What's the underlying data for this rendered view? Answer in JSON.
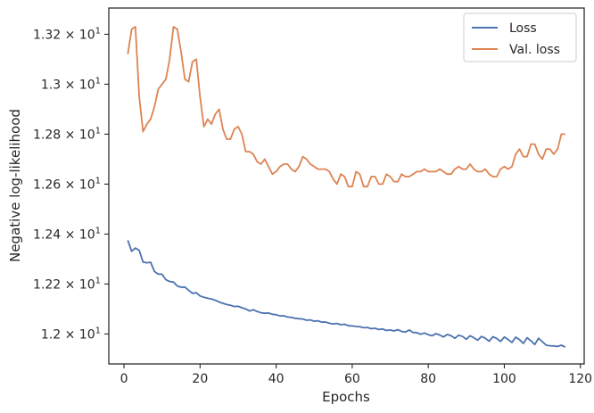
{
  "chart_data": {
    "type": "line",
    "xlabel": "Epochs",
    "ylabel": "Negative log-likelihood",
    "xlim": [
      -4,
      121
    ],
    "ylim": [
      11.88,
      13.305
    ],
    "x_ticks": [
      0,
      20,
      40,
      60,
      80,
      100,
      120
    ],
    "y_ticks": [
      {
        "value": 12.0,
        "mantissa": "1.2",
        "base": "10",
        "exp": "1"
      },
      {
        "value": 12.2,
        "mantissa": "1.22",
        "base": "10",
        "exp": "1"
      },
      {
        "value": 12.4,
        "mantissa": "1.24",
        "base": "10",
        "exp": "1"
      },
      {
        "value": 12.6,
        "mantissa": "1.26",
        "base": "10",
        "exp": "1"
      },
      {
        "value": 12.8,
        "mantissa": "1.28",
        "base": "10",
        "exp": "1"
      },
      {
        "value": 13.0,
        "mantissa": "1.3",
        "base": "10",
        "exp": "1"
      },
      {
        "value": 13.2,
        "mantissa": "1.32",
        "base": "10",
        "exp": "1"
      }
    ],
    "grid": false,
    "legend_position": "top-right",
    "series": [
      {
        "name": "Loss",
        "color": "#4c72b0",
        "x": [
          1,
          2,
          3,
          4,
          5,
          6,
          7,
          8,
          9,
          10,
          11,
          12,
          13,
          14,
          15,
          16,
          17,
          18,
          19,
          20,
          21,
          22,
          23,
          24,
          25,
          26,
          27,
          28,
          29,
          30,
          31,
          32,
          33,
          34,
          35,
          36,
          37,
          38,
          39,
          40,
          41,
          42,
          43,
          44,
          45,
          46,
          47,
          48,
          49,
          50,
          51,
          52,
          53,
          54,
          55,
          56,
          57,
          58,
          59,
          60,
          61,
          62,
          63,
          64,
          65,
          66,
          67,
          68,
          69,
          70,
          71,
          72,
          73,
          74,
          75,
          76,
          77,
          78,
          79,
          80,
          81,
          82,
          83,
          84,
          85,
          86,
          87,
          88,
          89,
          90,
          91,
          92,
          93,
          94,
          95,
          96,
          97,
          98,
          99,
          100,
          101,
          102,
          103,
          104,
          105,
          106,
          107,
          108,
          109,
          110,
          111,
          112,
          113,
          114,
          115,
          116
        ],
        "values": [
          12.375,
          12.331,
          12.344,
          12.335,
          12.288,
          12.285,
          12.287,
          12.25,
          12.24,
          12.239,
          12.217,
          12.21,
          12.208,
          12.192,
          12.187,
          12.188,
          12.175,
          12.163,
          12.165,
          12.152,
          12.147,
          12.143,
          12.14,
          12.135,
          12.128,
          12.123,
          12.118,
          12.115,
          12.11,
          12.111,
          12.105,
          12.1,
          12.092,
          12.097,
          12.09,
          12.085,
          12.083,
          12.084,
          12.079,
          12.077,
          12.072,
          12.073,
          12.068,
          12.066,
          12.063,
          12.061,
          12.06,
          12.055,
          12.056,
          12.051,
          12.053,
          12.047,
          12.048,
          12.043,
          12.04,
          12.042,
          12.037,
          12.039,
          12.033,
          12.032,
          12.03,
          12.029,
          12.025,
          12.026,
          12.021,
          12.023,
          12.018,
          12.02,
          12.014,
          12.016,
          12.012,
          12.017,
          12.01,
          12.008,
          12.016,
          12.006,
          12.005,
          11.999,
          12.004,
          11.997,
          11.993,
          12.001,
          11.996,
          11.988,
          11.998,
          11.993,
          11.983,
          11.995,
          11.99,
          11.979,
          11.993,
          11.985,
          11.975,
          11.99,
          11.983,
          11.971,
          11.989,
          11.982,
          11.97,
          11.988,
          11.978,
          11.966,
          11.987,
          11.977,
          11.962,
          11.985,
          11.972,
          11.958,
          11.983,
          11.969,
          11.955,
          11.953,
          11.952,
          11.95,
          11.955,
          11.948
        ]
      },
      {
        "name": "Val. loss",
        "color": "#dd8452",
        "x": [
          1,
          2,
          3,
          4,
          5,
          6,
          7,
          8,
          9,
          10,
          11,
          12,
          13,
          14,
          15,
          16,
          17,
          18,
          19,
          20,
          21,
          22,
          23,
          24,
          25,
          26,
          27,
          28,
          29,
          30,
          31,
          32,
          33,
          34,
          35,
          36,
          37,
          38,
          39,
          40,
          41,
          42,
          43,
          44,
          45,
          46,
          47,
          48,
          49,
          50,
          51,
          52,
          53,
          54,
          55,
          56,
          57,
          58,
          59,
          60,
          61,
          62,
          63,
          64,
          65,
          66,
          67,
          68,
          69,
          70,
          71,
          72,
          73,
          74,
          75,
          76,
          77,
          78,
          79,
          80,
          81,
          82,
          83,
          84,
          85,
          86,
          87,
          88,
          89,
          90,
          91,
          92,
          93,
          94,
          95,
          96,
          97,
          98,
          99,
          100,
          101,
          102,
          103,
          104,
          105,
          106,
          107,
          108,
          109,
          110,
          111,
          112,
          113,
          114,
          115,
          116
        ],
        "values": [
          13.12,
          13.22,
          13.23,
          12.95,
          12.81,
          12.84,
          12.86,
          12.91,
          12.98,
          13.0,
          13.02,
          13.1,
          13.23,
          13.22,
          13.13,
          13.02,
          13.01,
          13.09,
          13.1,
          12.95,
          12.83,
          12.86,
          12.84,
          12.88,
          12.9,
          12.82,
          12.78,
          12.78,
          12.82,
          12.83,
          12.8,
          12.73,
          12.73,
          12.72,
          12.69,
          12.68,
          12.7,
          12.67,
          12.64,
          12.65,
          12.67,
          12.68,
          12.68,
          12.66,
          12.65,
          12.67,
          12.71,
          12.7,
          12.68,
          12.67,
          12.66,
          12.66,
          12.66,
          12.65,
          12.62,
          12.6,
          12.64,
          12.63,
          12.59,
          12.59,
          12.65,
          12.64,
          12.59,
          12.59,
          12.63,
          12.63,
          12.6,
          12.6,
          12.64,
          12.63,
          12.61,
          12.61,
          12.64,
          12.63,
          12.63,
          12.64,
          12.65,
          12.65,
          12.66,
          12.65,
          12.65,
          12.65,
          12.66,
          12.65,
          12.64,
          12.64,
          12.66,
          12.67,
          12.66,
          12.66,
          12.68,
          12.66,
          12.65,
          12.65,
          12.66,
          12.64,
          12.63,
          12.63,
          12.66,
          12.67,
          12.66,
          12.67,
          12.72,
          12.74,
          12.71,
          12.71,
          12.76,
          12.76,
          12.72,
          12.7,
          12.74,
          12.74,
          12.72,
          12.74,
          12.8,
          12.8
        ]
      }
    ]
  }
}
